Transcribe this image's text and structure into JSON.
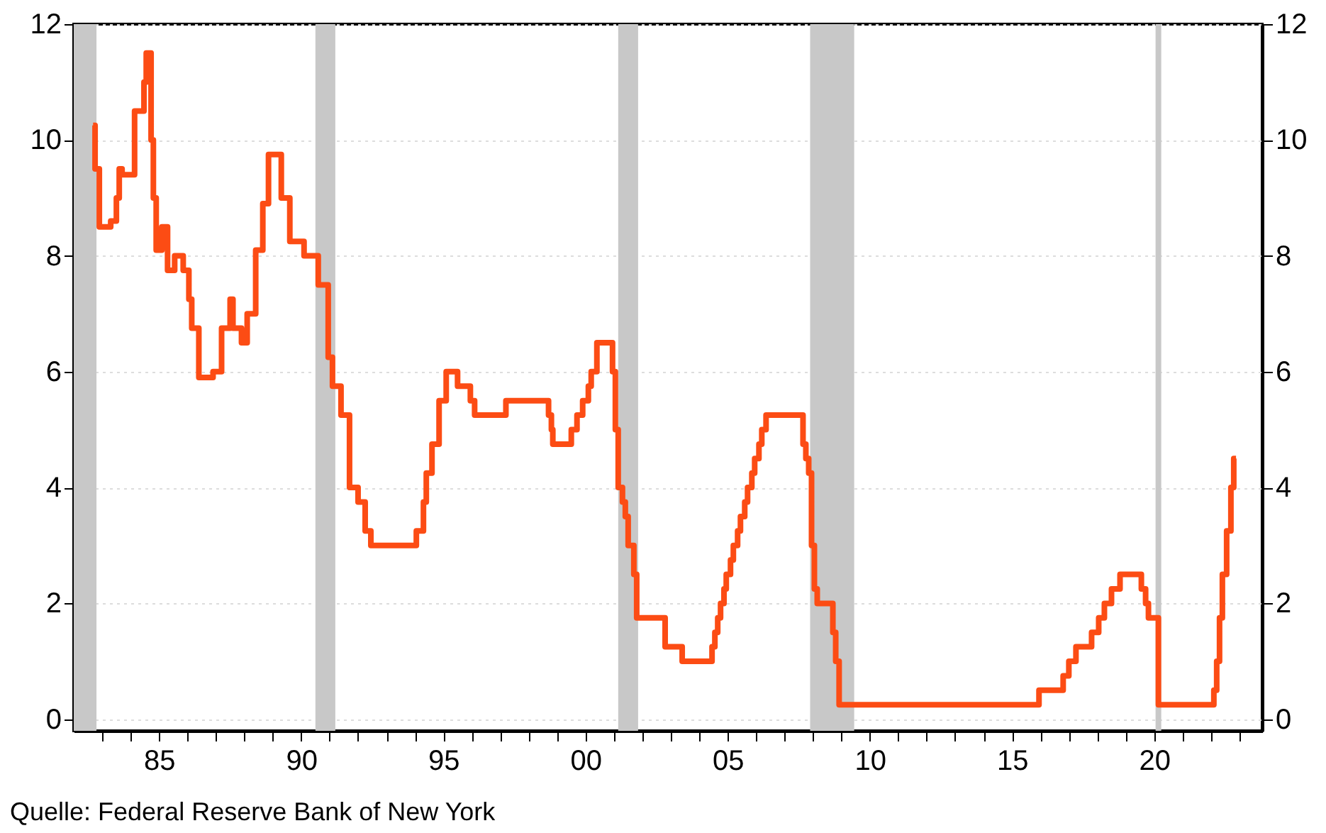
{
  "chart_data": {
    "type": "step",
    "x": [
      1982.68,
      1982.75,
      1982.9,
      1983.3,
      1983.5,
      1983.6,
      1983.7,
      1984.14,
      1984.47,
      1984.55,
      1984.72,
      1984.8,
      1984.9,
      1985.1,
      1985.3,
      1985.55,
      1985.85,
      1986.05,
      1986.15,
      1986.4,
      1986.9,
      1987.2,
      1987.5,
      1987.6,
      1987.9,
      1988.1,
      1988.4,
      1988.65,
      1988.85,
      1989.3,
      1989.6,
      1990.1,
      1990.6,
      1990.95,
      1991.1,
      1991.4,
      1991.7,
      1992.0,
      1992.25,
      1992.45,
      1994.05,
      1994.3,
      1994.4,
      1994.6,
      1994.85,
      1995.1,
      1995.5,
      1995.95,
      1996.1,
      1997.2,
      1998.7,
      1998.8,
      1998.85,
      1999.5,
      1999.7,
      1999.9,
      2000.1,
      2000.2,
      2000.4,
      2000.95,
      2001.05,
      2001.15,
      2001.3,
      2001.4,
      2001.5,
      2001.7,
      2001.8,
      2002.8,
      2003.4,
      2004.45,
      2004.55,
      2004.65,
      2004.75,
      2004.87,
      2004.95,
      2005.1,
      2005.2,
      2005.35,
      2005.45,
      2005.6,
      2005.7,
      2005.85,
      2005.95,
      2006.1,
      2006.2,
      2006.35,
      2007.65,
      2007.75,
      2007.85,
      2007.95,
      2008.05,
      2008.15,
      2008.7,
      2008.8,
      2008.92,
      2015.95,
      2016.8,
      2017.0,
      2017.25,
      2017.8,
      2018.05,
      2018.25,
      2018.5,
      2018.8,
      2019.55,
      2019.7,
      2019.8,
      2020.15,
      2022.1,
      2022.2,
      2022.3,
      2022.4,
      2022.55,
      2022.7,
      2022.8,
      2022.88
    ],
    "values": [
      10.25,
      9.5,
      8.5,
      8.6,
      9.0,
      9.5,
      9.4,
      10.5,
      11.0,
      11.5,
      10.0,
      9.0,
      8.1,
      8.5,
      7.75,
      8.0,
      7.75,
      7.25,
      6.75,
      5.9,
      6.0,
      6.75,
      7.25,
      6.75,
      6.5,
      7.0,
      8.1,
      8.9,
      9.75,
      9.0,
      8.25,
      8.0,
      7.5,
      6.25,
      5.75,
      5.25,
      4.0,
      3.75,
      3.25,
      3.0,
      3.25,
      3.75,
      4.25,
      4.75,
      5.5,
      6.0,
      5.75,
      5.5,
      5.25,
      5.5,
      5.25,
      5.0,
      4.75,
      5.0,
      5.25,
      5.5,
      5.75,
      6.0,
      6.5,
      6.0,
      5.0,
      4.0,
      3.75,
      3.5,
      3.0,
      2.5,
      1.75,
      1.25,
      1.0,
      1.25,
      1.5,
      1.75,
      2.0,
      2.25,
      2.5,
      2.75,
      3.0,
      3.25,
      3.5,
      3.75,
      4.0,
      4.25,
      4.5,
      4.75,
      5.0,
      5.25,
      4.75,
      4.5,
      4.25,
      3.0,
      2.25,
      2.0,
      1.5,
      1.0,
      0.25,
      0.5,
      0.75,
      1.0,
      1.25,
      1.5,
      1.75,
      2.0,
      2.25,
      2.5,
      2.25,
      2.0,
      1.75,
      0.25,
      0.5,
      1.0,
      1.75,
      2.5,
      3.25,
      4.0,
      4.5,
      4.5
    ],
    "color": "#fc4c14",
    "xlim": [
      1982,
      2023.8
    ],
    "xticks": [
      {
        "value": 1983,
        "label": null
      },
      {
        "value": 1984,
        "label": null
      },
      {
        "value": 1985,
        "label": "85"
      },
      {
        "value": 1986,
        "label": null
      },
      {
        "value": 1987,
        "label": null
      },
      {
        "value": 1988,
        "label": null
      },
      {
        "value": 1989,
        "label": null
      },
      {
        "value": 1990,
        "label": "90"
      },
      {
        "value": 1991,
        "label": null
      },
      {
        "value": 1992,
        "label": null
      },
      {
        "value": 1993,
        "label": null
      },
      {
        "value": 1994,
        "label": null
      },
      {
        "value": 1995,
        "label": "95"
      },
      {
        "value": 1996,
        "label": null
      },
      {
        "value": 1997,
        "label": null
      },
      {
        "value": 1998,
        "label": null
      },
      {
        "value": 1999,
        "label": null
      },
      {
        "value": 2000,
        "label": "00"
      },
      {
        "value": 2001,
        "label": null
      },
      {
        "value": 2002,
        "label": null
      },
      {
        "value": 2003,
        "label": null
      },
      {
        "value": 2004,
        "label": null
      },
      {
        "value": 2005,
        "label": "05"
      },
      {
        "value": 2006,
        "label": null
      },
      {
        "value": 2007,
        "label": null
      },
      {
        "value": 2008,
        "label": null
      },
      {
        "value": 2009,
        "label": null
      },
      {
        "value": 2010,
        "label": "10"
      },
      {
        "value": 2011,
        "label": null
      },
      {
        "value": 2012,
        "label": null
      },
      {
        "value": 2013,
        "label": null
      },
      {
        "value": 2014,
        "label": null
      },
      {
        "value": 2015,
        "label": "15"
      },
      {
        "value": 2016,
        "label": null
      },
      {
        "value": 2017,
        "label": null
      },
      {
        "value": 2018,
        "label": null
      },
      {
        "value": 2019,
        "label": null
      },
      {
        "value": 2020,
        "label": "20"
      },
      {
        "value": 2021,
        "label": null
      },
      {
        "value": 2022,
        "label": null
      },
      {
        "value": 2023,
        "label": null
      }
    ],
    "ylim": [
      -0.2,
      12
    ],
    "yticks": [
      0,
      2,
      4,
      6,
      8,
      10,
      12
    ],
    "y2lim": [
      -0.2,
      12
    ],
    "y2ticks": [
      0,
      2,
      4,
      6,
      8,
      10,
      12
    ],
    "bands": [
      {
        "axis": "x",
        "from": 1982,
        "to": 1982.8,
        "label": null,
        "color": "#c8c8c8"
      },
      {
        "axis": "x",
        "from": 1990.5,
        "to": 1991.2,
        "label": null,
        "color": "#c8c8c8"
      },
      {
        "axis": "x",
        "from": 2001.15,
        "to": 2001.85,
        "label": null,
        "color": "#c8c8c8"
      },
      {
        "axis": "x",
        "from": 2007.9,
        "to": 2009.45,
        "label": null,
        "color": "#c8c8c8"
      },
      {
        "axis": "x",
        "from": 2020.05,
        "to": 2020.25,
        "label": null,
        "color": "#c8c8c8"
      }
    ],
    "grid": "y",
    "line_style": "solid",
    "annotations": [
      "Quelle: Federal Reserve Bank of New York"
    ]
  }
}
